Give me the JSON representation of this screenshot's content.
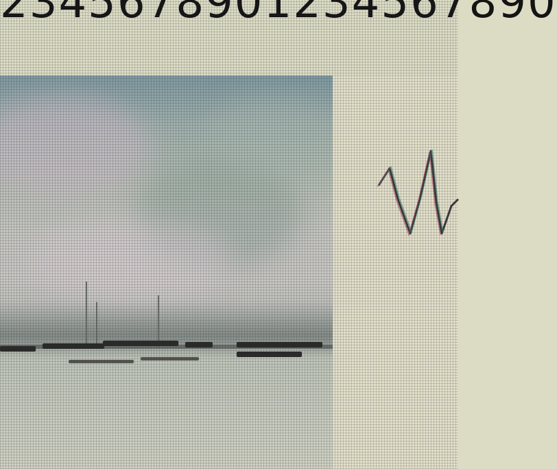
{
  "header": {
    "digit_strip": "2345678901234567890"
  },
  "photo": {
    "subject": "harbor-boats-icon"
  },
  "colors": {
    "background": "#dcdcc4",
    "sky": "#9fb0ac",
    "boats": "#2a2a28",
    "waveform": "#3a3a3a"
  }
}
